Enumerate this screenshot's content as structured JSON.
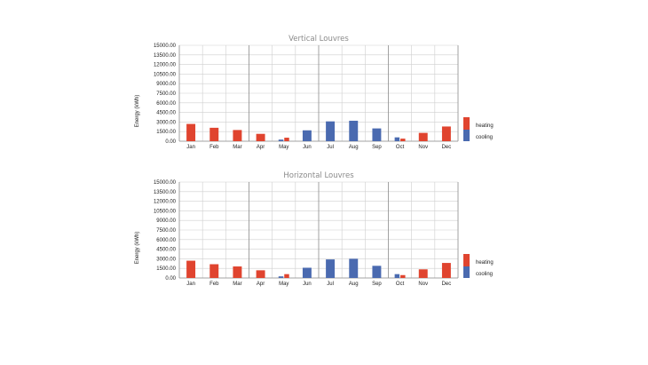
{
  "colors": {
    "heating": "#e0442f",
    "cooling": "#4a6ab0",
    "grid": "#cfcfcf",
    "grid_major": "#8c8c8c"
  },
  "chart_data": [
    {
      "type": "bar",
      "title": "Vertical Louvres",
      "ylabel": "Energy (kWh)",
      "xlabel": "",
      "ylim": [
        0,
        15000
      ],
      "yticks": [
        "15000.00",
        "13500.00",
        "12000.00",
        "10500.00",
        "9000.00",
        "7500.00",
        "6000.00",
        "4500.00",
        "3000.00",
        "1500.00",
        "0.00"
      ],
      "categories": [
        "Jan",
        "Feb",
        "Mar",
        "Apr",
        "May",
        "Jun",
        "Jul",
        "Aug",
        "Sep",
        "Oct",
        "Nov",
        "Dec"
      ],
      "series": [
        {
          "name": "heating",
          "values": [
            2700,
            2100,
            1750,
            1150,
            550,
            0,
            0,
            0,
            0,
            400,
            1300,
            2300
          ]
        },
        {
          "name": "cooling",
          "values": [
            0,
            0,
            0,
            0,
            250,
            1700,
            3100,
            3200,
            2000,
            600,
            0,
            0
          ]
        }
      ],
      "legend": [
        "heating",
        "cooling"
      ],
      "legend_position": "right"
    },
    {
      "type": "bar",
      "title": "Horizontal Louvres",
      "ylabel": "Energy (kWh)",
      "xlabel": "",
      "ylim": [
        0,
        15000
      ],
      "yticks": [
        "15000.00",
        "13500.00",
        "12000.00",
        "10500.00",
        "9000.00",
        "7500.00",
        "6000.00",
        "4500.00",
        "3000.00",
        "1500.00",
        "0.00"
      ],
      "categories": [
        "Jan",
        "Feb",
        "Mar",
        "Apr",
        "May",
        "Jun",
        "Jul",
        "Aug",
        "Sep",
        "Oct",
        "Nov",
        "Dec"
      ],
      "series": [
        {
          "name": "heating",
          "values": [
            2700,
            2150,
            1800,
            1200,
            600,
            0,
            0,
            0,
            0,
            450,
            1350,
            2350
          ]
        },
        {
          "name": "cooling",
          "values": [
            0,
            0,
            0,
            0,
            250,
            1600,
            2900,
            3000,
            1900,
            600,
            0,
            0
          ]
        }
      ],
      "legend": [
        "heating",
        "cooling"
      ],
      "legend_position": "right"
    }
  ]
}
